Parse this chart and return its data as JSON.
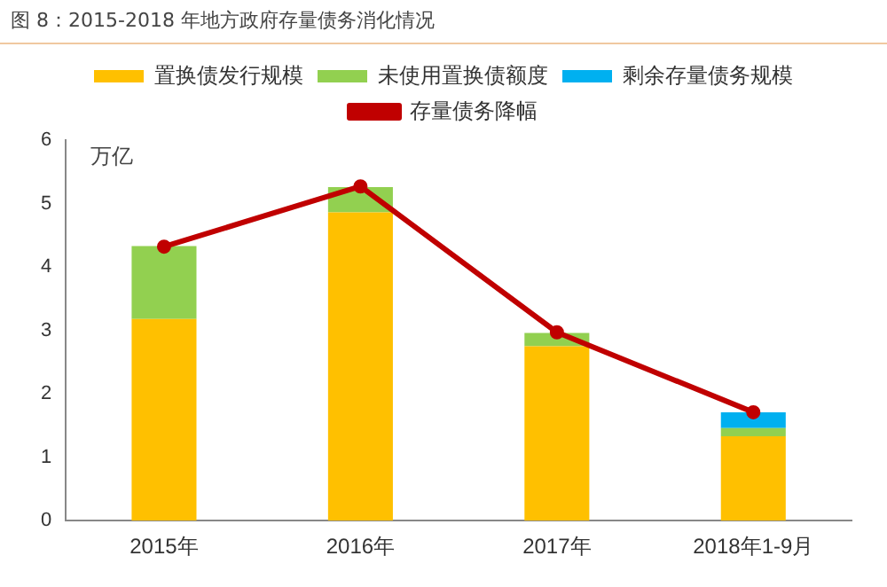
{
  "chart_data": {
    "type": "bar",
    "title": "图 8：2015-2018 年地方政府存量债务消化情况",
    "ylabel": "万亿",
    "categories": [
      "2015年",
      "2016年",
      "2017年",
      "2018年1-9月"
    ],
    "stacked": true,
    "series": [
      {
        "name": "置换债发行规模",
        "color": "#ffc000",
        "values": [
          3.18,
          4.86,
          2.75,
          1.33
        ]
      },
      {
        "name": "未使用置换债额度",
        "color": "#92d050",
        "values": [
          1.15,
          0.4,
          0.21,
          0.13
        ]
      },
      {
        "name": "剩余存量债务规模",
        "color": "#00b0f0",
        "values": [
          null,
          null,
          null,
          0.25
        ]
      },
      {
        "name": "存量债务降幅",
        "type": "line",
        "color": "#c00000",
        "values": [
          4.32,
          5.27,
          2.97,
          1.71
        ],
        "marker": "circle"
      }
    ],
    "ylim": [
      0,
      6
    ],
    "yticks": [
      0,
      1,
      2,
      3,
      4,
      5,
      6
    ],
    "grid": false,
    "legend": "top"
  }
}
